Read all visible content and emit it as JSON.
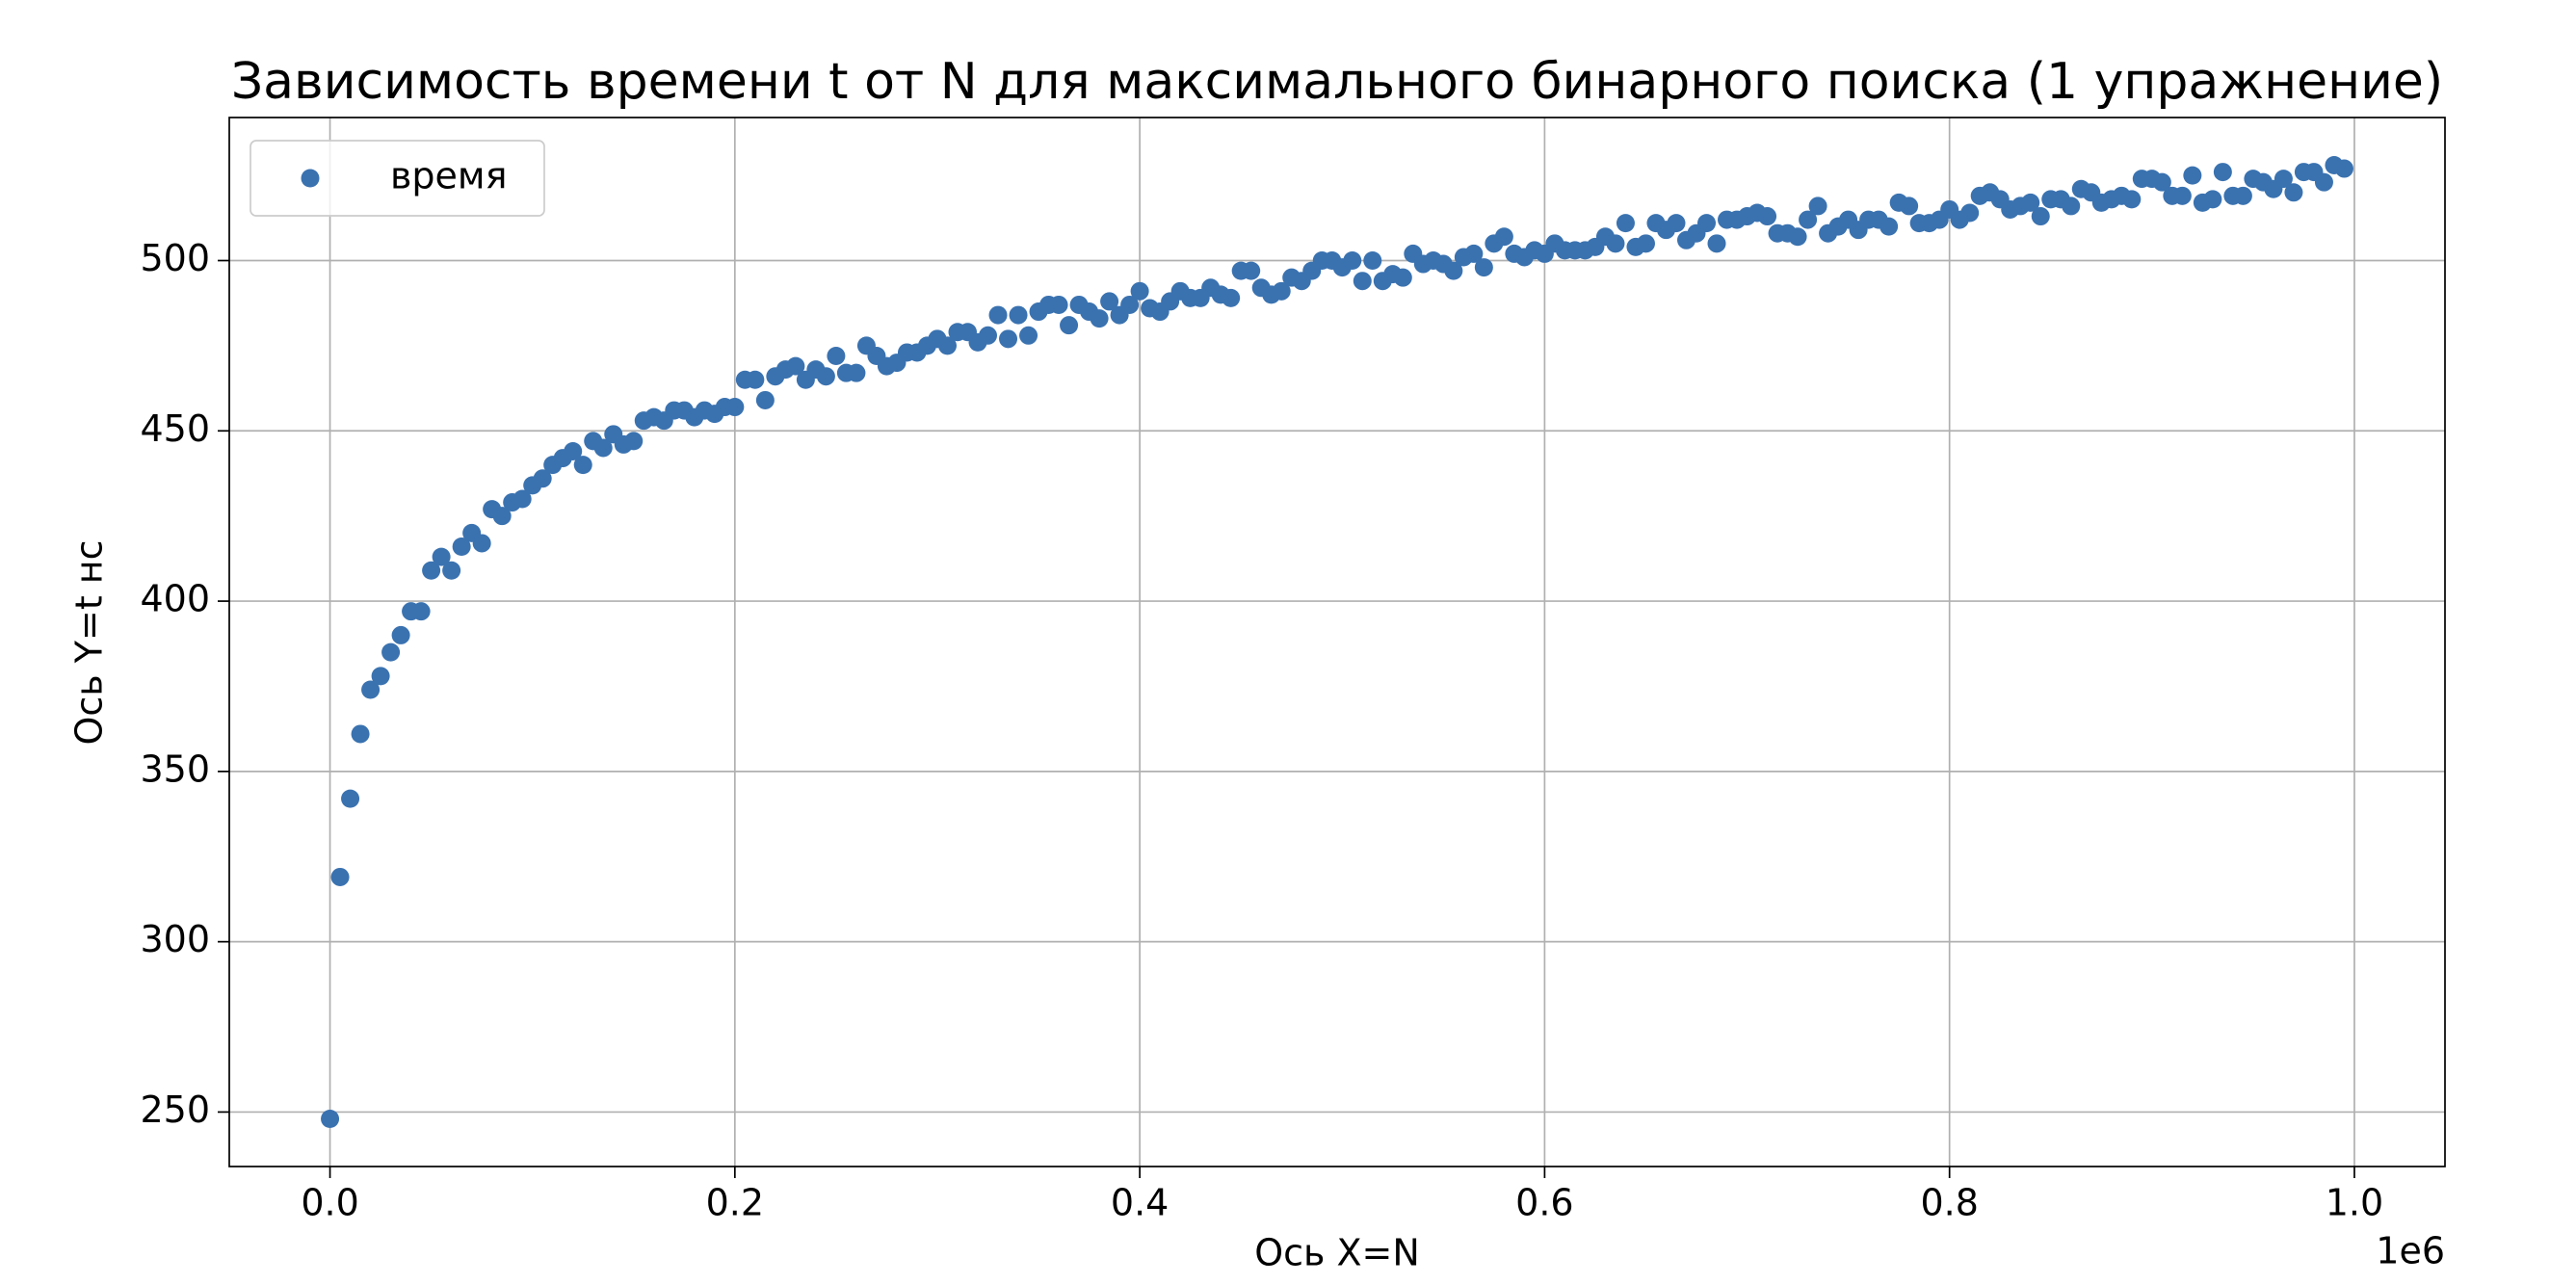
{
  "chart_data": {
    "type": "scatter",
    "title": "Зависимость времени t от N для максимального бинарного поиска (1 упражнение)",
    "xlabel": "Ось X=N",
    "ylabel": "Ось Y=t нс",
    "x_offset_label": "1e6",
    "legend_position": "upper left",
    "grid": true,
    "series": [
      {
        "name": "время",
        "color": "#3a72b0",
        "x": [
          0,
          5000,
          10000,
          15000,
          20000,
          25000,
          30000,
          35000,
          40000,
          45000,
          50000,
          55000,
          60000,
          65000,
          70000,
          75000,
          80000,
          85000,
          90000,
          95000,
          100000,
          105000,
          110000,
          115000,
          120000,
          125000,
          130000,
          135000,
          140000,
          145000,
          150000,
          155000,
          160000,
          165000,
          170000,
          175000,
          180000,
          185000,
          190000,
          195000,
          200000,
          205000,
          210000,
          215000,
          220000,
          225000,
          230000,
          235000,
          240000,
          245000,
          250000,
          255000,
          260000,
          265000,
          270000,
          275000,
          280000,
          285000,
          290000,
          295000,
          300000,
          305000,
          310000,
          315000,
          320000,
          325000,
          330000,
          335000,
          340000,
          345000,
          350000,
          355000,
          360000,
          365000,
          370000,
          375000,
          380000,
          385000,
          390000,
          395000,
          400000,
          405000,
          410000,
          415000,
          420000,
          425000,
          430000,
          435000,
          440000,
          445000,
          450000,
          455000,
          460000,
          465000,
          470000,
          475000,
          480000,
          485000,
          490000,
          495000,
          500000,
          505000,
          510000,
          515000,
          520000,
          525000,
          530000,
          535000,
          540000,
          545000,
          550000,
          555000,
          560000,
          565000,
          570000,
          575000,
          580000,
          585000,
          590000,
          595000,
          600000,
          605000,
          610000,
          615000,
          620000,
          625000,
          630000,
          635000,
          640000,
          645000,
          650000,
          655000,
          660000,
          665000,
          670000,
          675000,
          680000,
          685000,
          690000,
          695000,
          700000,
          705000,
          710000,
          715000,
          720000,
          725000,
          730000,
          735000,
          740000,
          745000,
          750000,
          755000,
          760000,
          765000,
          770000,
          775000,
          780000,
          785000,
          790000,
          795000,
          800000,
          805000,
          810000,
          815000,
          820000,
          825000,
          830000,
          835000,
          840000,
          845000,
          850000,
          855000,
          860000,
          865000,
          870000,
          875000,
          880000,
          885000,
          890000,
          895000,
          900000,
          905000,
          910000,
          915000,
          920000,
          925000,
          930000,
          935000,
          940000,
          945000,
          950000,
          955000,
          960000,
          965000,
          970000,
          975000,
          980000,
          985000,
          990000,
          995000
        ],
        "values": [
          248,
          319,
          342,
          361,
          374,
          378,
          385,
          390,
          397,
          397,
          409,
          413,
          409,
          416,
          420,
          417,
          427,
          425,
          429,
          430,
          434,
          436,
          440,
          442,
          444,
          440,
          447,
          445,
          449,
          446,
          447,
          453,
          454,
          453,
          456,
          456,
          454,
          456,
          455,
          457,
          457,
          465,
          465,
          459,
          466,
          468,
          469,
          465,
          468,
          466,
          472,
          467,
          467,
          475,
          472,
          469,
          470,
          473,
          473,
          475,
          477,
          475,
          479,
          479,
          476,
          478,
          484,
          477,
          484,
          478,
          485,
          487,
          487,
          481,
          487,
          485,
          483,
          488,
          484,
          487,
          491,
          486,
          485,
          488,
          491,
          489,
          489,
          492,
          490,
          489,
          497,
          497,
          492,
          490,
          491,
          495,
          494,
          497,
          500,
          500,
          498,
          500,
          494,
          500,
          494,
          496,
          495,
          502,
          499,
          500,
          499,
          497,
          501,
          502,
          498,
          505,
          507,
          502,
          501,
          503,
          502,
          505,
          503,
          503,
          503,
          504,
          507,
          505,
          511,
          504,
          505,
          511,
          509,
          511,
          506,
          508,
          511,
          505,
          512,
          512,
          513,
          514,
          513,
          508,
          508,
          507,
          512,
          516,
          508,
          510,
          512,
          509,
          512,
          512,
          510,
          517,
          516,
          511,
          511,
          512,
          515,
          512,
          514,
          519,
          520,
          518,
          515,
          516,
          517,
          513,
          518,
          518,
          516,
          521,
          520,
          517,
          518,
          519,
          518,
          524,
          524,
          523,
          519,
          519,
          525,
          517,
          518,
          526,
          519,
          519,
          524,
          523,
          521,
          524,
          520,
          526,
          526,
          523,
          528,
          527
        ]
      }
    ],
    "xlim": [
      -49750,
      1044750
    ],
    "xticks": [
      {
        "value": 0,
        "label": "0.0"
      },
      {
        "value": 200000,
        "label": "0.2"
      },
      {
        "value": 400000,
        "label": "0.4"
      },
      {
        "value": 600000,
        "label": "0.6"
      },
      {
        "value": 800000,
        "label": "0.8"
      },
      {
        "value": 1000000,
        "label": "1.0"
      }
    ],
    "ylim": [
      234,
      542
    ],
    "yticks": [
      250,
      300,
      350,
      400,
      450,
      500
    ]
  }
}
